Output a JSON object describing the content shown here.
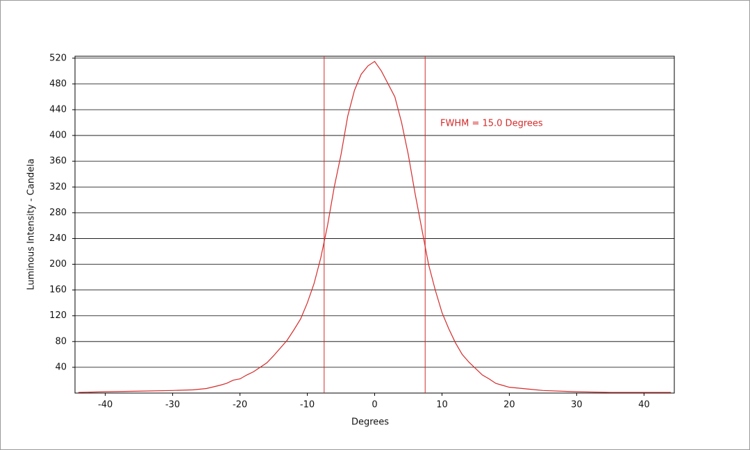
{
  "chart_data": {
    "type": "line",
    "x_label": "Degrees",
    "y_label": "Luminous Intensity - Candela",
    "annotation": "FWHM = 15.0 Degrees",
    "x": [
      -44,
      -40,
      -35,
      -30,
      -27,
      -25,
      -23,
      -22,
      -21,
      -20,
      -19,
      -18,
      -17,
      -16,
      -15,
      -14,
      -13,
      -12,
      -11,
      -10,
      -9,
      -8,
      -7,
      -6,
      -5,
      -4,
      -3,
      -2,
      -1,
      0,
      1,
      2,
      3,
      4,
      5,
      6,
      7,
      8,
      9,
      10,
      11,
      12,
      13,
      14,
      15,
      16,
      17,
      18,
      19,
      20,
      22,
      25,
      30,
      35,
      40,
      44
    ],
    "series": [
      {
        "name": "Luminous Intensity",
        "color": "#d42a2a",
        "values": [
          1,
          2,
          3,
          4,
          5,
          7,
          12,
          15,
          20,
          22,
          28,
          33,
          40,
          47,
          58,
          70,
          82,
          98,
          115,
          140,
          170,
          210,
          260,
          320,
          370,
          430,
          470,
          495,
          508,
          515,
          500,
          480,
          460,
          420,
          370,
          310,
          255,
          200,
          160,
          125,
          100,
          78,
          60,
          48,
          38,
          28,
          22,
          15,
          12,
          9,
          7,
          4,
          2,
          1,
          1,
          1
        ]
      }
    ],
    "fwhm_lines": [
      -7.5,
      7.5
    ],
    "xlim": [
      -44.5,
      44.5
    ],
    "ylim": [
      0,
      523
    ],
    "xticks": [
      -40,
      -30,
      -20,
      -10,
      0,
      10,
      20,
      30,
      40
    ],
    "yticks": [
      40,
      80,
      120,
      160,
      200,
      240,
      280,
      320,
      360,
      400,
      440,
      480,
      520
    ],
    "grid": true
  }
}
